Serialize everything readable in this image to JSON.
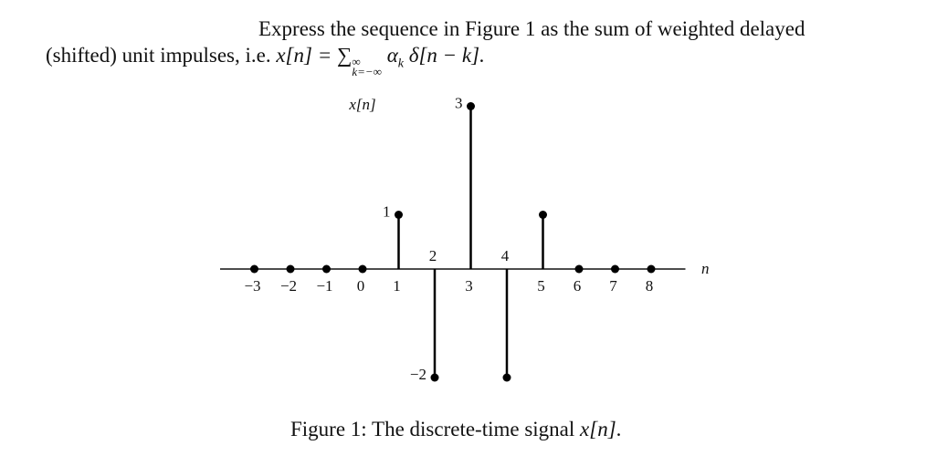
{
  "text": {
    "line1": "Express the sequence in Figure 1 as the sum of weighted delayed",
    "line2": "(shifted) unit impulses, i.e. ",
    "formula": {
      "lhs": "x[n] = ∑",
      "sup": "∞",
      "sub": "k=−∞",
      "coef": "α",
      "coef_sub": "k",
      "rest": " δ[n − k]."
    }
  },
  "chart_data": {
    "type": "stem",
    "ylabel": "x[n]",
    "xlabel": "n",
    "x": [
      -3,
      -2,
      -1,
      0,
      1,
      2,
      3,
      4,
      5,
      6,
      7,
      8
    ],
    "values": [
      0,
      0,
      0,
      0,
      1,
      -2,
      3,
      -2,
      1,
      0,
      0,
      0
    ],
    "value_labels": [
      null,
      null,
      null,
      null,
      "1",
      "−2",
      "3",
      null,
      null,
      null,
      null,
      null
    ],
    "color": "#000000",
    "xlim": [
      -4,
      9
    ],
    "ylim": [
      -2,
      3
    ],
    "xticks": [
      {
        "value": -3,
        "label": "−3"
      },
      {
        "value": -2,
        "label": "−2"
      },
      {
        "value": -1,
        "label": "−1"
      },
      0,
      1,
      2,
      3,
      4,
      5,
      6,
      7,
      8
    ]
  },
  "caption": {
    "prefix": "Figure 1: The discrete-time signal ",
    "math": "x[n]",
    "suffix": "."
  }
}
